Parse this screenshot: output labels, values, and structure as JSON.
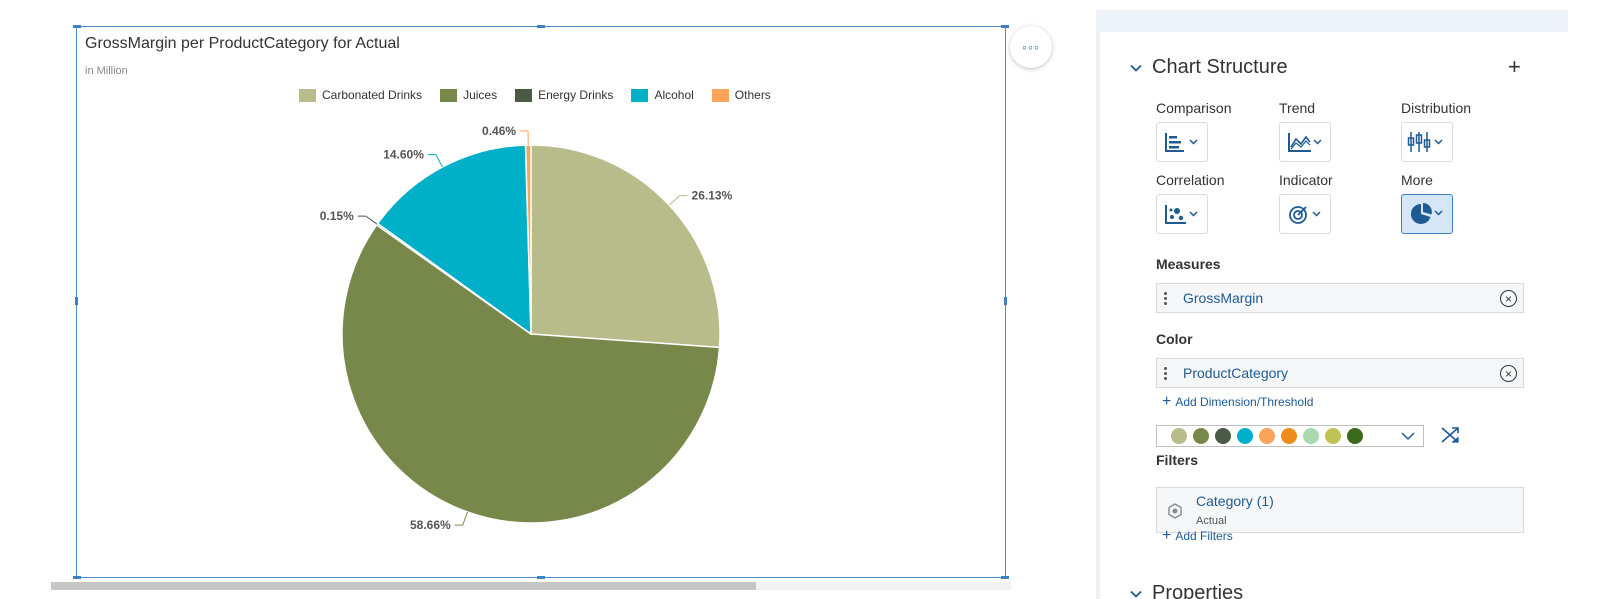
{
  "chart_widget": {
    "title": "GrossMargin per ProductCategory for Actual",
    "subtitle": "in Million",
    "more_button_label": "◦◦◦"
  },
  "chart_data": {
    "type": "pie",
    "title": "GrossMargin per ProductCategory for Actual",
    "subtitle": "in Million",
    "legend_position": "top",
    "categories": [
      "Carbonated Drinks",
      "Juices",
      "Energy Drinks",
      "Alcohol",
      "Others"
    ],
    "values": [
      26.13,
      58.66,
      0.15,
      14.6,
      0.46
    ],
    "labels": [
      "26.13%",
      "58.66%",
      "0.15%",
      "14.60%",
      "0.46%"
    ],
    "colors": [
      "#b8bb8a",
      "#78874a",
      "#4a5a45",
      "#00b0c8",
      "#fca35a"
    ]
  },
  "panel": {
    "chart_structure": {
      "title": "Chart Structure",
      "chart_types": [
        {
          "label": "Comparison",
          "icon": "bar-chart-icon"
        },
        {
          "label": "Trend",
          "icon": "area-chart-icon"
        },
        {
          "label": "Distribution",
          "icon": "box-plot-icon"
        },
        {
          "label": "Correlation",
          "icon": "scatter-chart-icon"
        },
        {
          "label": "Indicator",
          "icon": "target-icon"
        },
        {
          "label": "More",
          "icon": "pie-chart-icon",
          "selected": true
        }
      ]
    },
    "measures": {
      "label": "Measures",
      "items": [
        "GrossMargin"
      ]
    },
    "color": {
      "label": "Color",
      "items": [
        "ProductCategory"
      ],
      "add_link": "Add Dimension/Threshold",
      "palette": [
        "#b8bb8a",
        "#78874a",
        "#4a5a45",
        "#00b0c8",
        "#fca35a",
        "#f08a1a",
        "#a9d9ad",
        "#c1c256",
        "#3a6a1c"
      ]
    },
    "filters": {
      "label": "Filters",
      "items": [
        {
          "name": "Category (1)",
          "value": "Actual"
        }
      ],
      "add_link": "Add Filters"
    },
    "properties": {
      "title": "Properties"
    }
  }
}
